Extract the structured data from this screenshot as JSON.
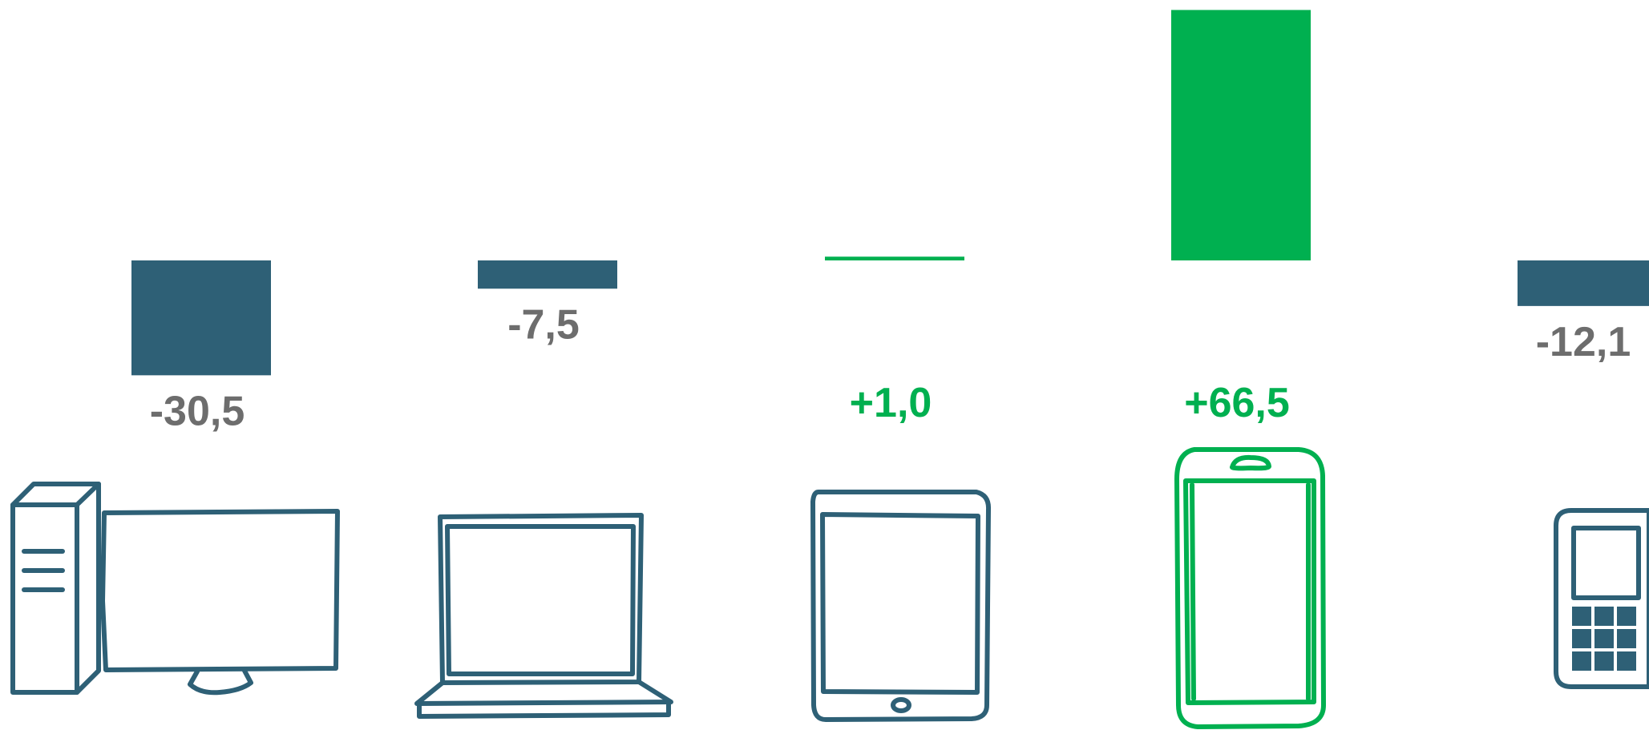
{
  "chart_data": {
    "type": "bar",
    "categories": [
      "Desktop PC",
      "Laptop",
      "Tablet",
      "Smartphone",
      "Feature phone"
    ],
    "values": [
      -30.5,
      -7.5,
      1.0,
      66.5,
      -12.1
    ],
    "data_labels": [
      "-30,5",
      "-7,5",
      "+1,0",
      "+66,5",
      "-12,1"
    ],
    "title": "",
    "xlabel": "",
    "ylabel": "",
    "ylim": [
      -40,
      70
    ],
    "grid": false,
    "legend": "none",
    "colors": {
      "positive": "#00b050",
      "negative": "#2e6076",
      "negative_label": "#6d6d6d"
    },
    "icons": [
      "desktop-computer-icon",
      "laptop-icon",
      "tablet-icon",
      "smartphone-icon",
      "feature-phone-icon"
    ]
  }
}
